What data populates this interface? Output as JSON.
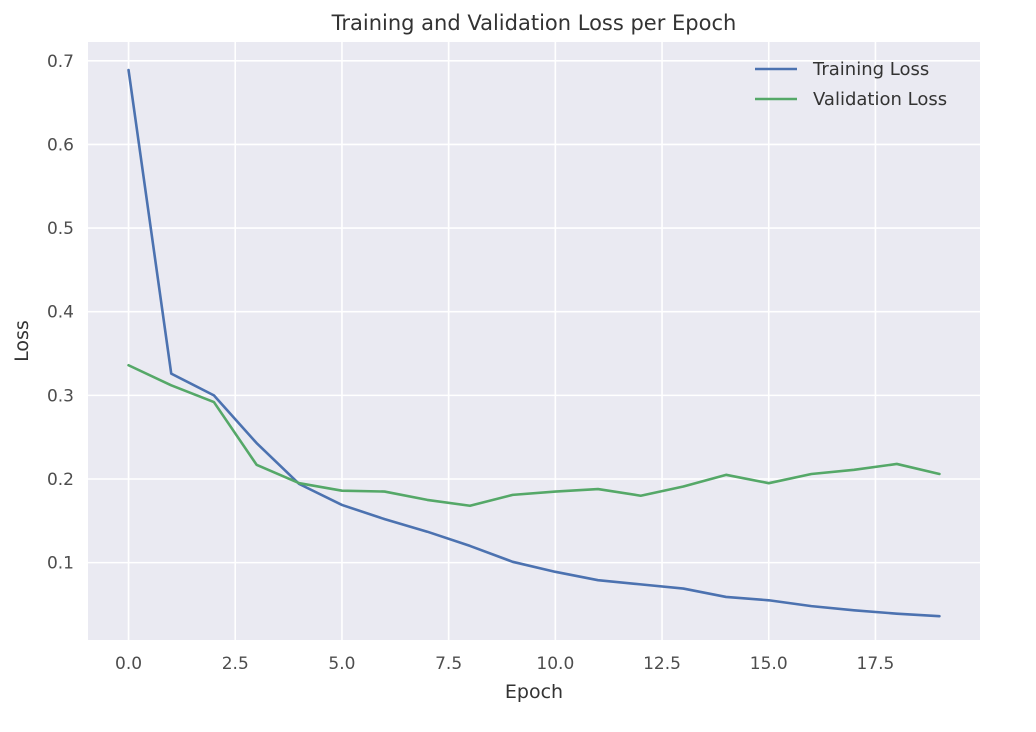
{
  "chart_data": {
    "type": "line",
    "title": "Training and Validation Loss per Epoch",
    "xlabel": "Epoch",
    "ylabel": "Loss",
    "xlim": [
      -0.95,
      19.95
    ],
    "ylim": [
      0.0075,
      0.7225
    ],
    "xticks": [
      0.0,
      2.5,
      5.0,
      7.5,
      10.0,
      12.5,
      15.0,
      17.5
    ],
    "xtick_labels": [
      "0.0",
      "2.5",
      "5.0",
      "7.5",
      "10.0",
      "12.5",
      "15.0",
      "17.5"
    ],
    "yticks": [
      0.1,
      0.2,
      0.3,
      0.4,
      0.5,
      0.6,
      0.7
    ],
    "ytick_labels": [
      "0.1",
      "0.2",
      "0.3",
      "0.4",
      "0.5",
      "0.6",
      "0.7"
    ],
    "grid": true,
    "legend_position": "top-right",
    "x": [
      0,
      1,
      2,
      3,
      4,
      5,
      6,
      7,
      8,
      9,
      10,
      11,
      12,
      13,
      14,
      15,
      16,
      17,
      18,
      19
    ],
    "series": [
      {
        "name": "Training Loss",
        "color": "#4c72b0",
        "values": [
          0.689,
          0.326,
          0.3,
          0.243,
          0.194,
          0.169,
          0.152,
          0.137,
          0.12,
          0.101,
          0.089,
          0.079,
          0.074,
          0.069,
          0.059,
          0.055,
          0.048,
          0.043,
          0.039,
          0.036
        ]
      },
      {
        "name": "Validation Loss",
        "color": "#55a868",
        "values": [
          0.336,
          0.312,
          0.292,
          0.217,
          0.195,
          0.186,
          0.185,
          0.175,
          0.168,
          0.181,
          0.185,
          0.188,
          0.18,
          0.191,
          0.205,
          0.195,
          0.206,
          0.211,
          0.218,
          0.206
        ]
      }
    ],
    "colors": {
      "plot_background": "#eaeaf2",
      "grid": "#ffffff"
    }
  }
}
